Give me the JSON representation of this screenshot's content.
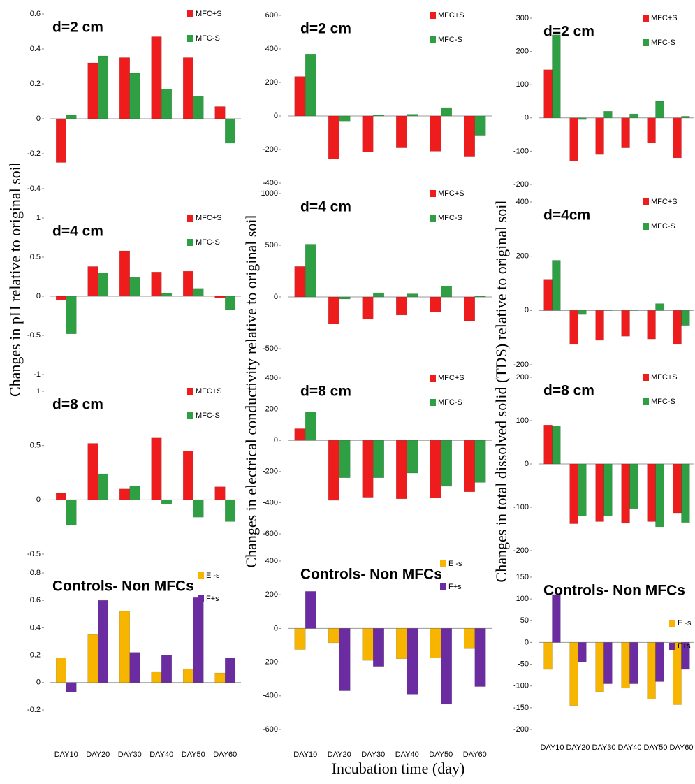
{
  "chart_data": [
    {
      "type": "bar",
      "title": "d=2 cm",
      "ylabel": "Changes in pH relative to original soil",
      "ylim": [
        -0.4,
        0.6
      ],
      "yticks": [
        -0.4,
        -0.2,
        0,
        0.2,
        0.4,
        0.6
      ],
      "series": [
        {
          "name": "MFC+S",
          "color": "#ee1c1c",
          "values": [
            -0.25,
            0.32,
            0.35,
            0.47,
            0.35,
            0.07
          ]
        },
        {
          "name": "MFC-S",
          "color": "#2ea043",
          "values": [
            0.02,
            0.36,
            0.26,
            0.17,
            0.13,
            -0.14
          ]
        }
      ]
    },
    {
      "type": "bar",
      "title": "d=4 cm",
      "ylim": [
        -1,
        1
      ],
      "yticks": [
        -1,
        -0.5,
        0,
        0.5,
        1
      ],
      "series": [
        {
          "name": "MFC+S",
          "color": "#ee1c1c",
          "values": [
            -0.05,
            0.38,
            0.58,
            0.31,
            0.32,
            -0.02
          ]
        },
        {
          "name": "MFC-S",
          "color": "#2ea043",
          "values": [
            -0.48,
            0.3,
            0.24,
            0.04,
            0.1,
            -0.17
          ]
        }
      ]
    },
    {
      "type": "bar",
      "title": "d=8 cm",
      "ylim": [
        -0.5,
        1
      ],
      "yticks": [
        -0.5,
        0,
        0.5,
        1
      ],
      "series": [
        {
          "name": "MFC+S",
          "color": "#ee1c1c",
          "values": [
            0.06,
            0.52,
            0.1,
            0.57,
            0.45,
            0.12
          ]
        },
        {
          "name": "MFC-S",
          "color": "#2ea043",
          "values": [
            -0.23,
            0.24,
            0.13,
            -0.04,
            -0.16,
            -0.2
          ]
        }
      ]
    },
    {
      "type": "bar",
      "title": "Controls- Non MFCs",
      "ylim": [
        -0.2,
        0.8
      ],
      "yticks": [
        -0.2,
        0,
        0.2,
        0.4,
        0.6,
        0.8
      ],
      "categories": [
        "DAY10",
        "DAY20",
        "DAY30",
        "DAY40",
        "DAY50",
        "DAY60"
      ],
      "series": [
        {
          "name": "E -s",
          "color": "#f7b500",
          "values": [
            0.18,
            0.35,
            0.52,
            0.08,
            0.1,
            0.07
          ]
        },
        {
          "name": "F+s",
          "color": "#6a2ca0",
          "values": [
            -0.07,
            0.6,
            0.22,
            0.2,
            0.62,
            0.18
          ]
        }
      ]
    },
    {
      "type": "bar",
      "title": "d=2 cm",
      "ylabel": "Changes in electrical  conductivity relative to original soil",
      "ylim": [
        -400,
        600
      ],
      "yticks": [
        -400,
        -200,
        0,
        200,
        400,
        600
      ],
      "series": [
        {
          "name": "MFC+S",
          "color": "#ee1c1c",
          "values": [
            235,
            -255,
            -215,
            -190,
            -210,
            -240
          ]
        },
        {
          "name": "MFC-S",
          "color": "#2ea043",
          "values": [
            370,
            -30,
            5,
            10,
            50,
            -115
          ]
        }
      ]
    },
    {
      "type": "bar",
      "title": "d=4 cm",
      "ylim": [
        -500,
        1000
      ],
      "yticks": [
        -500,
        0,
        500,
        1000
      ],
      "series": [
        {
          "name": "MFC+S",
          "color": "#ee1c1c",
          "values": [
            295,
            -260,
            -215,
            -175,
            -145,
            -230
          ]
        },
        {
          "name": "MFC-S",
          "color": "#2ea043",
          "values": [
            510,
            -20,
            40,
            30,
            105,
            10
          ]
        }
      ]
    },
    {
      "type": "bar",
      "title": "d=8 cm",
      "ylim": [
        -600,
        400
      ],
      "yticks": [
        -600,
        -400,
        -200,
        0,
        200,
        400
      ],
      "series": [
        {
          "name": "MFC+S",
          "color": "#ee1c1c",
          "values": [
            75,
            -385,
            -365,
            -375,
            -370,
            -330
          ]
        },
        {
          "name": "MFC-S",
          "color": "#2ea043",
          "values": [
            180,
            -240,
            -240,
            -210,
            -295,
            -270
          ]
        }
      ]
    },
    {
      "type": "bar",
      "title": "Controls- Non MFCs",
      "xlabel": "Incubation time (day)",
      "ylim": [
        -600,
        400
      ],
      "yticks": [
        -600,
        -400,
        -200,
        0,
        200,
        400
      ],
      "categories": [
        "DAY10",
        "DAY20",
        "DAY30",
        "DAY40",
        "DAY50",
        "DAY60"
      ],
      "series": [
        {
          "name": "E -s",
          "color": "#f7b500",
          "values": [
            -125,
            -85,
            -190,
            -180,
            -175,
            -120
          ]
        },
        {
          "name": "F+s",
          "color": "#6a2ca0",
          "values": [
            220,
            -370,
            -225,
            -390,
            -450,
            -345
          ]
        }
      ]
    },
    {
      "type": "bar",
      "title": "d=2 cm",
      "ylabel": "Changes in total dissolved solid (TDS) relative to original soil",
      "ylim": [
        -200,
        300
      ],
      "yticks": [
        -200,
        -100,
        0,
        100,
        200,
        300
      ],
      "series": [
        {
          "name": "MFC+S",
          "color": "#ee1c1c",
          "values": [
            145,
            -130,
            -110,
            -90,
            -75,
            -120
          ]
        },
        {
          "name": "MFC-S",
          "color": "#2ea043",
          "values": [
            250,
            -5,
            20,
            12,
            50,
            5
          ]
        }
      ]
    },
    {
      "type": "bar",
      "title": "d=4cm",
      "ylim": [
        -200,
        400
      ],
      "yticks": [
        -200,
        0,
        200,
        400
      ],
      "series": [
        {
          "name": "MFC+S",
          "color": "#ee1c1c",
          "values": [
            115,
            -125,
            -110,
            -95,
            -105,
            -125
          ]
        },
        {
          "name": "MFC-S",
          "color": "#2ea043",
          "values": [
            185,
            -15,
            3,
            2,
            25,
            -55
          ]
        }
      ]
    },
    {
      "type": "bar",
      "title": "d=8 cm",
      "ylim": [
        -200,
        200
      ],
      "yticks": [
        -200,
        -100,
        0,
        100,
        200
      ],
      "series": [
        {
          "name": "MFC+S",
          "color": "#ee1c1c",
          "values": [
            90,
            -138,
            -133,
            -137,
            -133,
            -113
          ]
        },
        {
          "name": "MFC-S",
          "color": "#2ea043",
          "values": [
            88,
            -120,
            -120,
            -103,
            -145,
            -135
          ]
        }
      ]
    },
    {
      "type": "bar",
      "title": "Controls- Non MFCs",
      "ylim": [
        -200,
        150
      ],
      "yticks": [
        -200,
        -150,
        -100,
        -50,
        0,
        50,
        100,
        150
      ],
      "categories": [
        "DAY10",
        "DAY20",
        "DAY30",
        "DAY40",
        "DAY50",
        "DAY60"
      ],
      "series": [
        {
          "name": "E -s",
          "color": "#f7b500",
          "values": [
            -62,
            -145,
            -113,
            -105,
            -130,
            -143
          ]
        },
        {
          "name": "F+s",
          "color": "#6a2ca0",
          "values": [
            110,
            -45,
            -95,
            -95,
            -90,
            -62
          ]
        }
      ]
    }
  ]
}
